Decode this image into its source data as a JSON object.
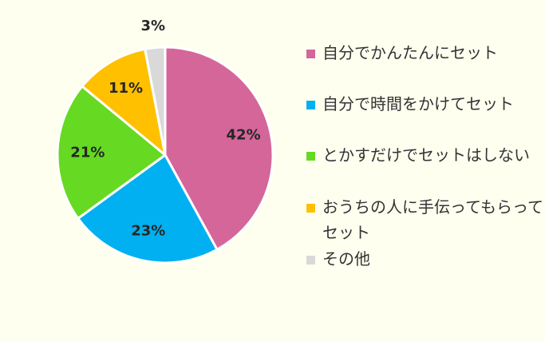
{
  "chart_data": {
    "type": "pie",
    "categories": [
      "自分でかんたんにセット",
      "自分で時間をかけてセット",
      "とかすだけでセットはしない",
      "おうちの人に手伝ってもらってセット",
      "その他"
    ],
    "values": [
      42,
      23,
      21,
      11,
      3
    ],
    "data_labels": [
      "42%",
      "23%",
      "21%",
      "11%",
      "3%"
    ],
    "colors": [
      "#d4669a",
      "#00b0f0",
      "#66d922",
      "#ffc000",
      "#d9d9d9"
    ],
    "legend_position": "right"
  }
}
